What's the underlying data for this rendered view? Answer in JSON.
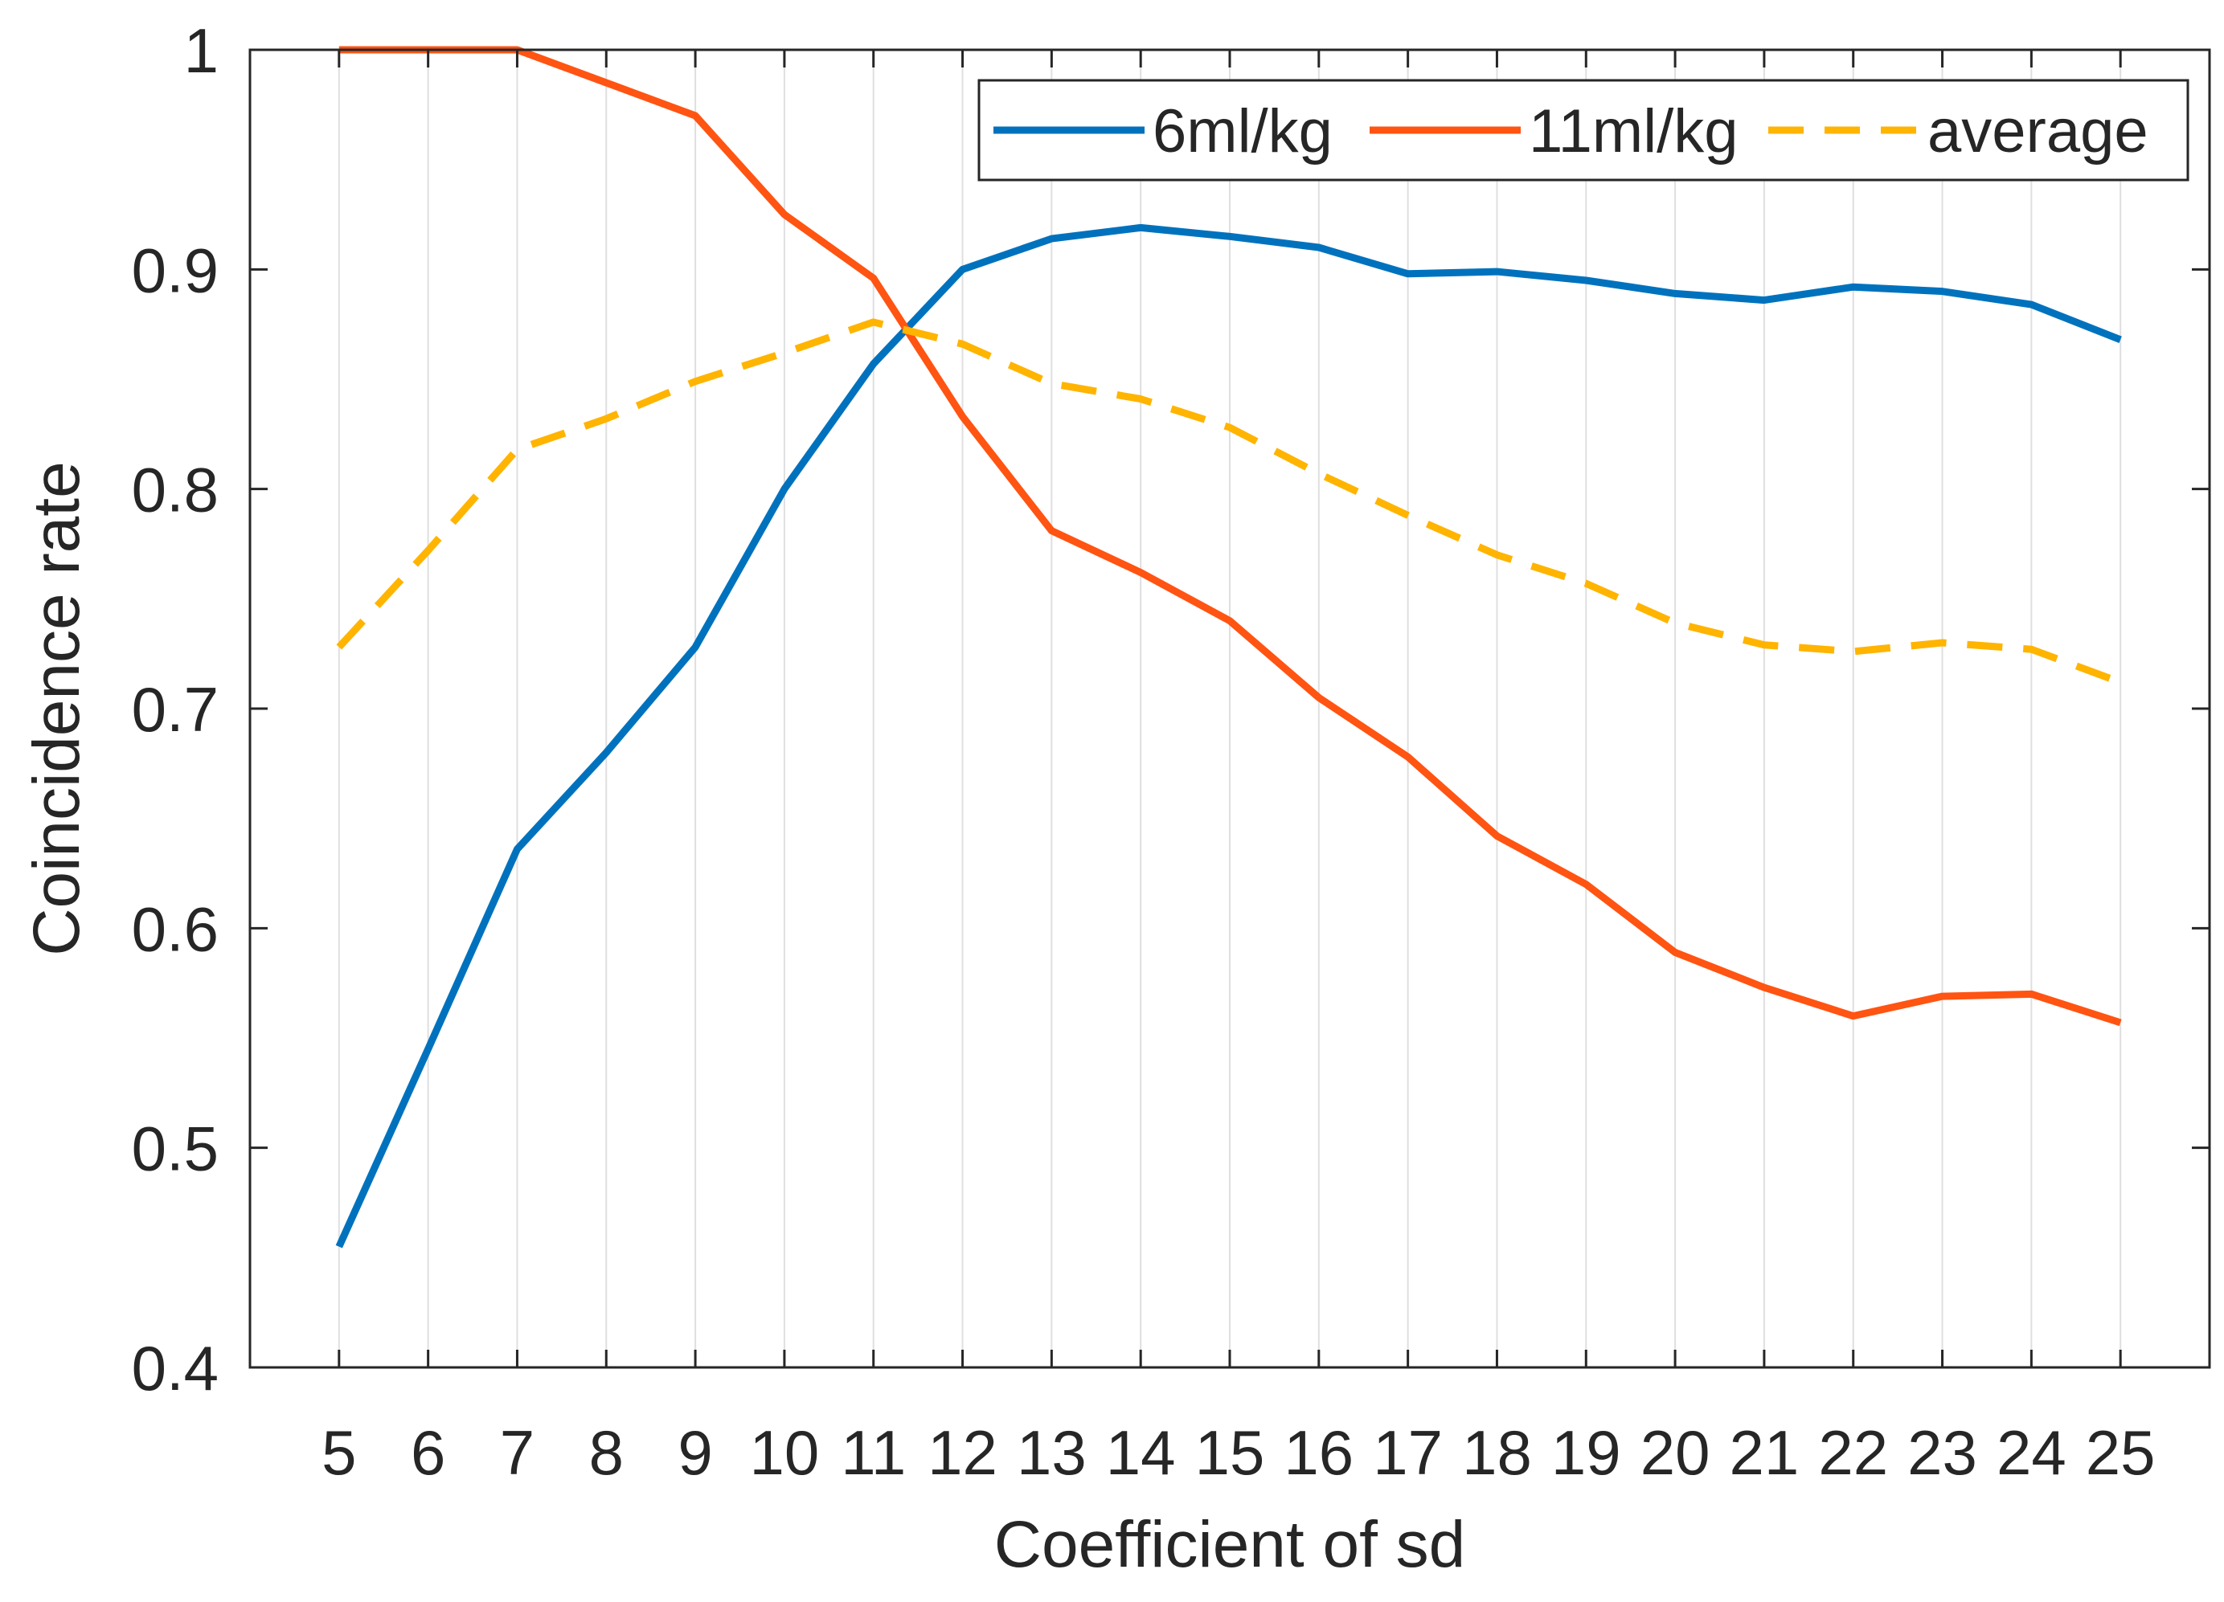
{
  "chart_data": {
    "type": "line",
    "title": "",
    "xlabel": "Coefficient of sd",
    "ylabel": "Coincidence rate",
    "x": [
      5,
      6,
      7,
      8,
      9,
      10,
      11,
      12,
      13,
      14,
      15,
      16,
      17,
      18,
      19,
      20,
      21,
      22,
      23,
      24,
      25
    ],
    "xlim": [
      4,
      26
    ],
    "ylim": [
      0.4,
      1
    ],
    "yticks": [
      0.4,
      0.5,
      0.6,
      0.7,
      0.8,
      0.9,
      1
    ],
    "ytick_labels": [
      "0.4",
      "0.5",
      "0.6",
      "0.7",
      "0.8",
      "0.9",
      "1"
    ],
    "xtick_labels": [
      "5",
      "6",
      "7",
      "8",
      "9",
      "10",
      "11",
      "12",
      "13",
      "14",
      "15",
      "16",
      "17",
      "18",
      "19",
      "20",
      "21",
      "22",
      "23",
      "24",
      "25"
    ],
    "grid": "x",
    "legend_position": "top-right",
    "legend_orientation": "horizontal",
    "series": [
      {
        "name": "6ml/kg",
        "color": "#0072BD",
        "dash": "solid",
        "values": [
          0.455,
          0.545,
          0.636,
          0.68,
          0.728,
          0.8,
          0.857,
          0.9,
          0.914,
          0.919,
          0.915,
          0.91,
          0.898,
          0.899,
          0.895,
          0.889,
          0.886,
          0.892,
          0.89,
          0.884,
          0.868
        ]
      },
      {
        "name": "11ml/kg",
        "color": "#FF5412",
        "dash": "solid",
        "values": [
          1.0,
          1.0,
          1.0,
          0.985,
          0.97,
          0.925,
          0.896,
          0.833,
          0.781,
          0.762,
          0.74,
          0.705,
          0.678,
          0.642,
          0.62,
          0.589,
          0.573,
          0.56,
          0.569,
          0.57,
          0.557
        ]
      },
      {
        "name": "average",
        "color": "#FFB400",
        "dash": "dashed",
        "values": [
          0.728,
          0.772,
          0.818,
          0.832,
          0.849,
          0.862,
          0.876,
          0.866,
          0.848,
          0.841,
          0.828,
          0.807,
          0.788,
          0.77,
          0.757,
          0.739,
          0.729,
          0.726,
          0.73,
          0.727,
          0.712
        ]
      }
    ]
  }
}
